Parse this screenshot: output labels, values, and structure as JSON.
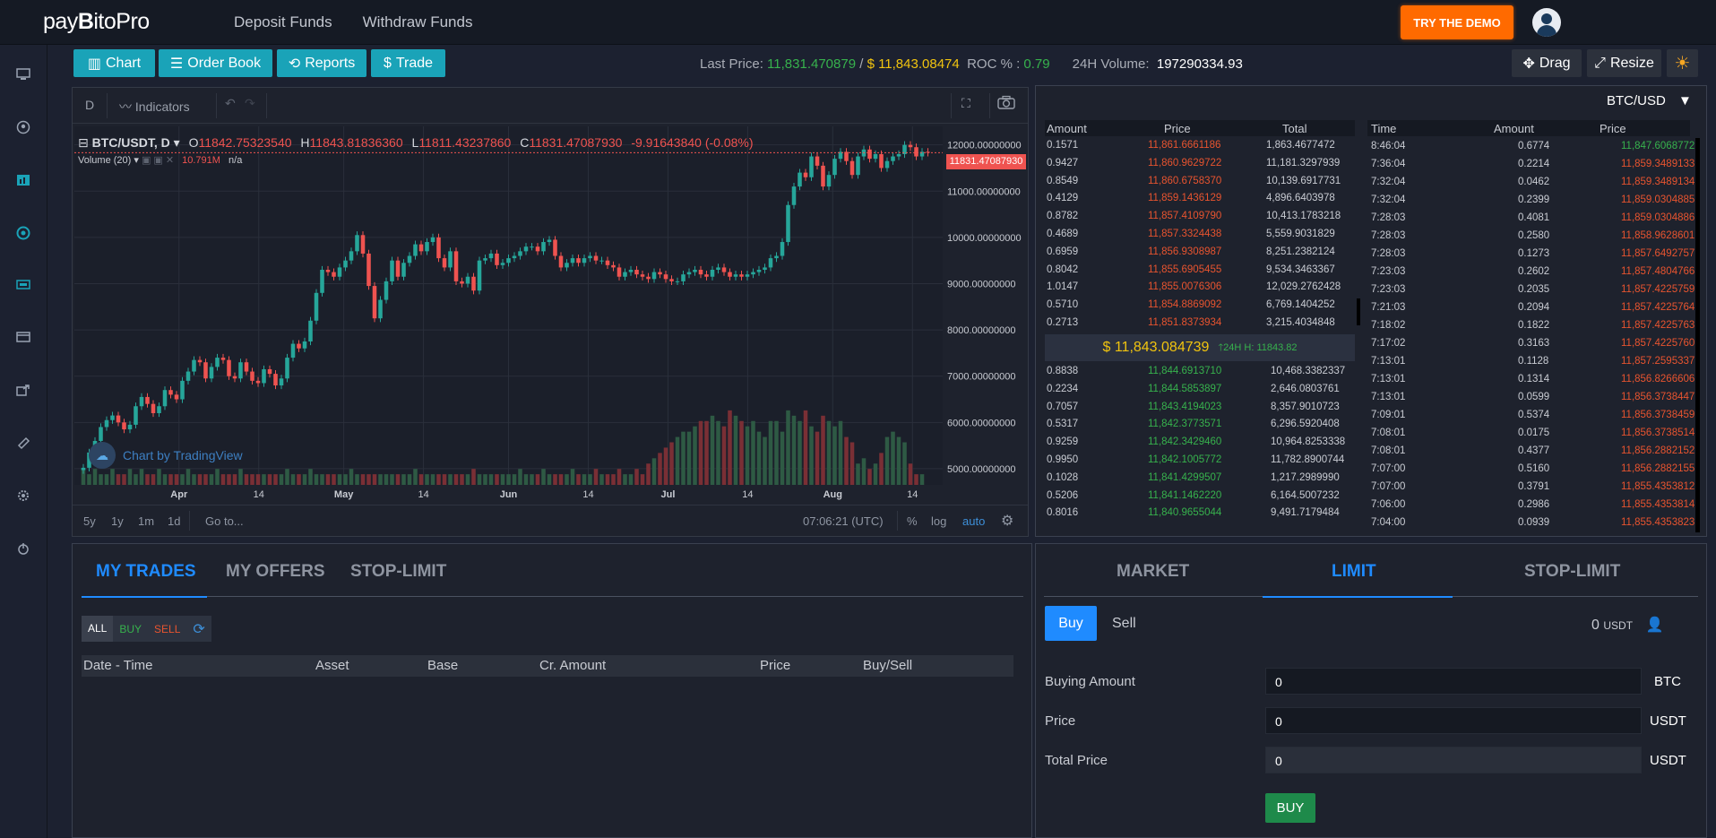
{
  "brand": {
    "part1": "pay",
    "part2": "B",
    "part3": "itoPro"
  },
  "topnav": {
    "deposit": "Deposit Funds",
    "withdraw": "Withdraw Funds",
    "demo": "TRY THE DEMO"
  },
  "toolbar": {
    "chart": "Chart",
    "order_book": "Order Book",
    "reports": "Reports",
    "trade": "Trade",
    "drag": "Drag",
    "resize": "Resize"
  },
  "ticker": {
    "last_price_label": "Last Price:",
    "last_price": "11,831.470879",
    "sep": "/",
    "last_price_usd": "$ 11,843.08474",
    "roc_label": "ROC % :",
    "roc": "0.79",
    "volume_label": "24H Volume:",
    "volume": "197290334.93"
  },
  "chart": {
    "interval": "D",
    "indicators": "Indicators",
    "symbol": "BTC/USDT, D",
    "ohlc": {
      "o_label": "O",
      "o": "11842.75323540",
      "h_label": "H",
      "h": "11843.81836360",
      "l_label": "L",
      "l": "11811.43237860",
      "c_label": "C",
      "c": "11831.47087930",
      "chg": "-9.91643840 (-0.08%)"
    },
    "volume_label": "Volume (20)",
    "volume_value": "10.791M",
    "volume_na": "n/a",
    "price_tag": "11831.47087930",
    "watermark": "Chart by TradingView",
    "footer": {
      "r5y": "5y",
      "r1y": "1y",
      "r1m": "1m",
      "r1d": "1d",
      "goto": "Go to...",
      "time": "07:06:21 (UTC)",
      "pct": "%",
      "log": "log",
      "auto": "auto"
    }
  },
  "chart_data": {
    "type": "candlestick",
    "title": "BTC/USDT, D",
    "y_ticks": [
      "12000.00000000",
      "11000.00000000",
      "10000.00000000",
      "9000.00000000",
      "8000.00000000",
      "7000.00000000",
      "6000.00000000",
      "5000.00000000"
    ],
    "x_ticks": [
      "Apr",
      "14",
      "May",
      "14",
      "Jun",
      "14",
      "Jul",
      "14",
      "Aug",
      "14"
    ],
    "ylim": [
      4650,
      12400
    ],
    "close_series": [
      5020,
      5350,
      5600,
      5900,
      6050,
      6150,
      6000,
      5850,
      5950,
      6350,
      6550,
      6400,
      6200,
      6350,
      6700,
      6600,
      6500,
      6900,
      7100,
      7350,
      7300,
      6950,
      7200,
      7400,
      7350,
      7000,
      6950,
      7300,
      7100,
      6900,
      6850,
      7150,
      7050,
      6800,
      6950,
      7400,
      7700,
      7600,
      7750,
      8200,
      8800,
      9300,
      9250,
      9150,
      9350,
      9500,
      9700,
      10050,
      9650,
      8950,
      8250,
      8650,
      9050,
      9500,
      9150,
      9450,
      9600,
      9850,
      9700,
      9900,
      10000,
      9550,
      9350,
      9700,
      9050,
      9000,
      9150,
      8850,
      9500,
      9550,
      9650,
      9400,
      9450,
      9550,
      9600,
      9700,
      9800,
      9800,
      9700,
      9900,
      9950,
      9600,
      9350,
      9450,
      9550,
      9450,
      9550,
      9600,
      9500,
      9500,
      9400,
      9350,
      9150,
      9250,
      9300,
      9200,
      9150,
      9100,
      9250,
      9200,
      9100,
      9050,
      9050,
      9200,
      9250,
      9300,
      9200,
      9150,
      9300,
      9350,
      9250,
      9150,
      9200,
      9150,
      9200,
      9250,
      9300,
      9350,
      9550,
      9600,
      9900,
      10700,
      11100,
      11400,
      11300,
      11750,
      11550,
      11100,
      11350,
      11700,
      11850,
      11650,
      11350,
      11750,
      11900,
      11700,
      11800,
      11500,
      11650,
      11750,
      11800,
      12000,
      11950,
      11750,
      11850,
      11831
    ],
    "volume_series": [
      3,
      2,
      3,
      2,
      2,
      3,
      2,
      2,
      3,
      2,
      3,
      2,
      2,
      3,
      2,
      2,
      2,
      2,
      3,
      2,
      2,
      2,
      2,
      3,
      2,
      2,
      2,
      3,
      2,
      2,
      2,
      2,
      2,
      2,
      2,
      3,
      2,
      2,
      2,
      3,
      2,
      2,
      2,
      2,
      2,
      2,
      3,
      2,
      2,
      2,
      2,
      2,
      2,
      2,
      2,
      2,
      2,
      3,
      2,
      2,
      2,
      2,
      2,
      2,
      2,
      2,
      2,
      3,
      2,
      2,
      2,
      2,
      2,
      2,
      2,
      3,
      2,
      2,
      2,
      3,
      2,
      2,
      2,
      2,
      3,
      2,
      2,
      2,
      3,
      2,
      2,
      2,
      3,
      2,
      2,
      3,
      2,
      4,
      5,
      6,
      7,
      8,
      9,
      10,
      10,
      11,
      12,
      12,
      13,
      12,
      11,
      14,
      13,
      12,
      11,
      12,
      10,
      9,
      12,
      12,
      10,
      14,
      13,
      12,
      14,
      11,
      10,
      13,
      12,
      11,
      12,
      9,
      8,
      4,
      5,
      3,
      4,
      6,
      9,
      10,
      9,
      8,
      4,
      2,
      2
    ]
  },
  "orderbook": {
    "pair": "BTC/USD",
    "headers": {
      "amount": "Amount",
      "price": "Price",
      "total": "Total",
      "time": "Time"
    },
    "asks": [
      [
        "0.1571",
        "11,861.6661186",
        "1,863.4677472"
      ],
      [
        "0.9427",
        "11,860.9629722",
        "11,181.3297939"
      ],
      [
        "0.8549",
        "11,860.6758370",
        "10,139.6917731"
      ],
      [
        "0.4129",
        "11,859.1436129",
        "4,896.6403978"
      ],
      [
        "0.8782",
        "11,857.4109790",
        "10,413.1783218"
      ],
      [
        "0.4689",
        "11,857.3324438",
        "5,559.9031829"
      ],
      [
        "0.6959",
        "11,856.9308987",
        "8,251.2382124"
      ],
      [
        "0.8042",
        "11,855.6905455",
        "9,534.3463367"
      ],
      [
        "1.0147",
        "11,855.0076306",
        "12,029.2762428"
      ],
      [
        "0.5710",
        "11,854.8869092",
        "6,769.1404252"
      ],
      [
        "0.2713",
        "11,851.8373934",
        "3,215.4034848"
      ]
    ],
    "mid_price": "$ 11,843.084739",
    "mid_change": "24H H: 11843.82",
    "bids": [
      [
        "0.8838",
        "11,844.6913710",
        "10,468.3382337"
      ],
      [
        "0.2234",
        "11,844.5853897",
        "2,646.0803761"
      ],
      [
        "0.7057",
        "11,843.4194023",
        "8,357.9010723"
      ],
      [
        "0.5317",
        "11,842.3773571",
        "6,296.5920408"
      ],
      [
        "0.9259",
        "11,842.3429460",
        "10,964.8253338"
      ],
      [
        "0.9950",
        "11,842.1005772",
        "11,782.8900744"
      ],
      [
        "0.1028",
        "11,841.4299507",
        "1,217.2989990"
      ],
      [
        "0.5206",
        "11,841.1462220",
        "6,164.5007232"
      ],
      [
        "0.8016",
        "11,840.9655044",
        "9,491.7179484"
      ]
    ],
    "trades": [
      [
        "8:46:04",
        "0.6774",
        "11,847.6068772",
        "g"
      ],
      [
        "7:36:04",
        "0.2214",
        "11,859.3489133",
        "r"
      ],
      [
        "7:32:04",
        "0.0462",
        "11,859.3489134",
        "r"
      ],
      [
        "7:32:04",
        "0.2399",
        "11,859.0304885",
        "r"
      ],
      [
        "7:28:03",
        "0.4081",
        "11,859.0304886",
        "r"
      ],
      [
        "7:28:03",
        "0.2580",
        "11,858.9628601",
        "r"
      ],
      [
        "7:28:03",
        "0.1273",
        "11,857.6492757",
        "r"
      ],
      [
        "7:23:03",
        "0.2602",
        "11,857.4804766",
        "r"
      ],
      [
        "7:23:03",
        "0.2035",
        "11,857.4225759",
        "r"
      ],
      [
        "7:21:03",
        "0.2094",
        "11,857.4225764",
        "r"
      ],
      [
        "7:18:02",
        "0.1822",
        "11,857.4225763",
        "r"
      ],
      [
        "7:17:02",
        "0.3163",
        "11,857.4225760",
        "r"
      ],
      [
        "7:13:01",
        "0.1128",
        "11,857.2595337",
        "r"
      ],
      [
        "7:13:01",
        "0.1314",
        "11,856.8266606",
        "r"
      ],
      [
        "7:13:01",
        "0.0599",
        "11,856.3738447",
        "r"
      ],
      [
        "7:09:01",
        "0.5374",
        "11,856.3738459",
        "r"
      ],
      [
        "7:08:01",
        "0.0175",
        "11,856.3738514",
        "r"
      ],
      [
        "7:08:01",
        "0.4377",
        "11,856.2882152",
        "r"
      ],
      [
        "7:07:00",
        "0.5160",
        "11,856.2882155",
        "r"
      ],
      [
        "7:07:00",
        "0.3791",
        "11,855.4353812",
        "r"
      ],
      [
        "7:06:00",
        "0.2986",
        "11,855.4353814",
        "r"
      ],
      [
        "7:04:00",
        "0.0939",
        "11,855.4353823",
        "r"
      ]
    ]
  },
  "trades_panel": {
    "tabs": [
      "MY TRADES",
      "MY OFFERS",
      "STOP-LIMIT"
    ],
    "filters": [
      "ALL",
      "BUY",
      "SELL"
    ],
    "columns": [
      "Date - Time",
      "Asset",
      "Base",
      "Cr. Amount",
      "Price",
      "Buy/Sell"
    ]
  },
  "order_panel": {
    "tabs": [
      "MARKET",
      "LIMIT",
      "STOP-LIMIT"
    ],
    "buy": "Buy",
    "sell": "Sell",
    "balance": "0",
    "balance_unit": "USDT",
    "buying_amount_label": "Buying Amount",
    "buying_amount": "0",
    "buying_amount_unit": "BTC",
    "price_label": "Price",
    "price": "0",
    "price_unit": "USDT",
    "total_label": "Total Price",
    "total": "0",
    "total_unit": "USDT",
    "submit": "BUY"
  }
}
